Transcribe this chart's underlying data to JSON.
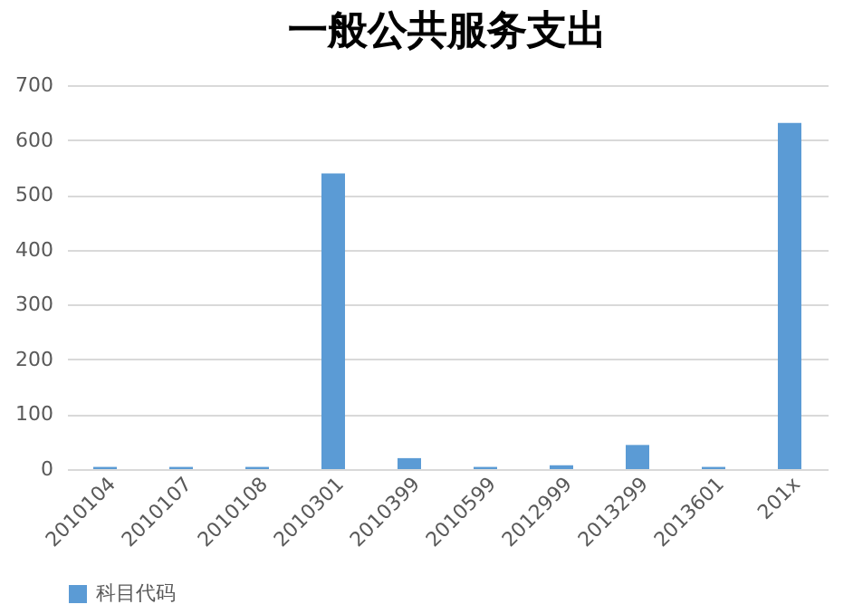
{
  "chart_data": {
    "type": "bar",
    "title": "一般公共服务支出",
    "categories": [
      "2010104",
      "2010107",
      "2010108",
      "2010301",
      "2010399",
      "2010599",
      "2012999",
      "2013299",
      "2013601",
      "201x"
    ],
    "series": [
      {
        "name": "科目代码",
        "color": "#5b9bd5",
        "values": [
          4,
          4,
          4,
          539,
          20,
          4,
          7,
          44,
          4,
          631
        ]
      }
    ],
    "ylim": [
      0,
      700
    ],
    "yticks": [
      0,
      100,
      200,
      300,
      400,
      500,
      600,
      700
    ],
    "grid": "y",
    "legend": "bottom"
  }
}
